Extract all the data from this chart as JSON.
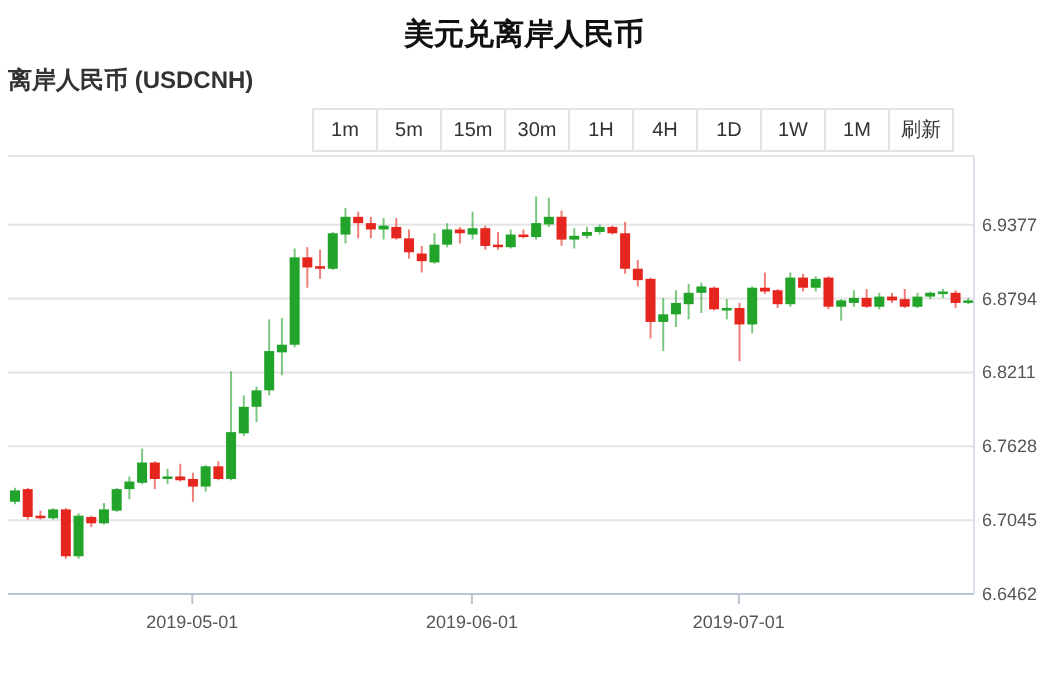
{
  "chart_data": {
    "type": "candlestick",
    "title": "美元兑离岸人民币",
    "subtitle": "离岸人民币 (USDCNH)",
    "annotations": [
      "1m",
      "5m",
      "15m",
      "30m",
      "1H",
      "4H",
      "1D",
      "1W",
      "1M",
      "刷新"
    ],
    "categories": [
      null,
      null,
      null,
      null,
      null,
      null,
      null,
      null,
      null,
      null,
      null,
      null,
      null,
      null,
      "2019-05-01",
      null,
      null,
      null,
      null,
      null,
      null,
      null,
      null,
      null,
      null,
      null,
      null,
      null,
      null,
      null,
      null,
      null,
      null,
      null,
      null,
      null,
      "2019-06-01",
      null,
      null,
      null,
      null,
      null,
      null,
      null,
      null,
      null,
      null,
      null,
      null,
      null,
      null,
      null,
      null,
      null,
      null,
      null,
      null,
      "2019-07-01",
      null,
      null,
      null,
      null,
      null,
      null,
      null,
      null,
      null,
      null,
      null,
      null,
      null,
      null,
      null,
      null,
      null,
      null
    ],
    "ohlc": [
      [
        6.719,
        6.73,
        6.717,
        6.728
      ],
      [
        6.729,
        6.73,
        6.705,
        6.707
      ],
      [
        6.708,
        6.712,
        6.705,
        6.706
      ],
      [
        6.706,
        6.714,
        6.705,
        6.713
      ],
      [
        6.713,
        6.714,
        6.674,
        6.676
      ],
      [
        6.676,
        6.71,
        6.674,
        6.708
      ],
      [
        6.707,
        6.708,
        6.699,
        6.702
      ],
      [
        6.702,
        6.718,
        6.701,
        6.713
      ],
      [
        6.712,
        6.73,
        6.711,
        6.729
      ],
      [
        6.729,
        6.739,
        6.721,
        6.735
      ],
      [
        6.734,
        6.761,
        6.733,
        6.75
      ],
      [
        6.75,
        6.751,
        6.729,
        6.737
      ],
      [
        6.737,
        6.745,
        6.733,
        6.739
      ],
      [
        6.739,
        6.749,
        6.735,
        6.736
      ],
      [
        6.737,
        6.742,
        6.719,
        6.731
      ],
      [
        6.731,
        6.748,
        6.727,
        6.747
      ],
      [
        6.747,
        6.751,
        6.736,
        6.737
      ],
      [
        6.737,
        6.822,
        6.736,
        6.774
      ],
      [
        6.773,
        6.803,
        6.771,
        6.794
      ],
      [
        6.794,
        6.81,
        6.782,
        6.807
      ],
      [
        6.807,
        6.863,
        6.803,
        6.838
      ],
      [
        6.837,
        6.864,
        6.819,
        6.843
      ],
      [
        6.843,
        6.919,
        6.841,
        6.912
      ],
      [
        6.912,
        6.92,
        6.888,
        6.904
      ],
      [
        6.905,
        6.918,
        6.895,
        6.903
      ],
      [
        6.903,
        6.932,
        6.902,
        6.931
      ],
      [
        6.93,
        6.951,
        6.923,
        6.944
      ],
      [
        6.944,
        6.948,
        6.927,
        6.939
      ],
      [
        6.939,
        6.944,
        6.927,
        6.934
      ],
      [
        6.934,
        6.943,
        6.926,
        6.937
      ],
      [
        6.936,
        6.943,
        6.926,
        6.927
      ],
      [
        6.927,
        6.934,
        6.911,
        6.916
      ],
      [
        6.915,
        6.921,
        6.9,
        6.909
      ],
      [
        6.908,
        6.931,
        6.907,
        6.922
      ],
      [
        6.922,
        6.939,
        6.92,
        6.934
      ],
      [
        6.934,
        6.936,
        6.923,
        6.931
      ],
      [
        6.93,
        6.948,
        6.926,
        6.935
      ],
      [
        6.935,
        6.937,
        6.918,
        6.921
      ],
      [
        6.922,
        6.932,
        6.918,
        6.92
      ],
      [
        6.92,
        6.934,
        6.919,
        6.93
      ],
      [
        6.93,
        6.934,
        6.927,
        6.928
      ],
      [
        6.928,
        6.96,
        6.926,
        6.939
      ],
      [
        6.938,
        6.959,
        6.936,
        6.944
      ],
      [
        6.944,
        6.949,
        6.921,
        6.926
      ],
      [
        6.926,
        6.935,
        6.919,
        6.929
      ],
      [
        6.929,
        6.936,
        6.927,
        6.932
      ],
      [
        6.932,
        6.938,
        6.93,
        6.936
      ],
      [
        6.936,
        6.937,
        6.93,
        6.931
      ],
      [
        6.931,
        6.94,
        6.899,
        6.903
      ],
      [
        6.903,
        6.91,
        6.889,
        6.894
      ],
      [
        6.895,
        6.896,
        6.848,
        6.861
      ],
      [
        6.861,
        6.88,
        6.838,
        6.867
      ],
      [
        6.867,
        6.886,
        6.857,
        6.876
      ],
      [
        6.875,
        6.891,
        6.863,
        6.884
      ],
      [
        6.884,
        6.892,
        6.868,
        6.889
      ],
      [
        6.888,
        6.889,
        6.87,
        6.871
      ],
      [
        6.87,
        6.879,
        6.863,
        6.872
      ],
      [
        6.872,
        6.876,
        6.83,
        6.859
      ],
      [
        6.859,
        6.889,
        6.852,
        6.888
      ],
      [
        6.888,
        6.9,
        6.883,
        6.885
      ],
      [
        6.886,
        6.887,
        6.872,
        6.875
      ],
      [
        6.875,
        6.9,
        6.873,
        6.896
      ],
      [
        6.896,
        6.899,
        6.885,
        6.888
      ],
      [
        6.888,
        6.897,
        6.885,
        6.895
      ],
      [
        6.896,
        6.897,
        6.871,
        6.873
      ],
      [
        6.873,
        6.879,
        6.862,
        6.878
      ],
      [
        6.876,
        6.886,
        6.873,
        6.88
      ],
      [
        6.88,
        6.887,
        6.872,
        6.873
      ],
      [
        6.873,
        6.884,
        6.871,
        6.881
      ],
      [
        6.881,
        6.884,
        6.876,
        6.878
      ],
      [
        6.879,
        6.887,
        6.872,
        6.873
      ],
      [
        6.873,
        6.884,
        6.872,
        6.881
      ],
      [
        6.881,
        6.885,
        6.879,
        6.884
      ],
      [
        6.883,
        6.887,
        6.88,
        6.885
      ],
      [
        6.884,
        6.886,
        6.872,
        6.876
      ],
      [
        6.876,
        6.88,
        6.875,
        6.878
      ]
    ],
    "colors": [
      "#22a32a",
      "#e5261e",
      "#e5261e",
      "#22a32a",
      "#e5261e",
      "#22a32a",
      "#e5261e",
      "#22a32a",
      "#22a32a",
      "#22a32a",
      "#22a32a",
      "#e5261e",
      "#22a32a",
      "#e5261e",
      "#e5261e",
      "#22a32a",
      "#e5261e",
      "#22a32a",
      "#22a32a",
      "#22a32a",
      "#22a32a",
      "#22a32a",
      "#22a32a",
      "#e5261e",
      "#e5261e",
      "#22a32a",
      "#22a32a",
      "#e5261e",
      "#e5261e",
      "#22a32a",
      "#e5261e",
      "#e5261e",
      "#e5261e",
      "#22a32a",
      "#22a32a",
      "#e5261e",
      "#22a32a",
      "#e5261e",
      "#e5261e",
      "#22a32a",
      "#e5261e",
      "#22a32a",
      "#22a32a",
      "#e5261e",
      "#22a32a",
      "#22a32a",
      "#22a32a",
      "#e5261e",
      "#e5261e",
      "#e5261e",
      "#e5261e",
      "#22a32a",
      "#22a32a",
      "#22a32a",
      "#22a32a",
      "#e5261e",
      "#22a32a",
      "#e5261e",
      "#22a32a",
      "#e5261e",
      "#e5261e",
      "#22a32a",
      "#e5261e",
      "#22a32a",
      "#e5261e",
      "#22a32a",
      "#22a32a",
      "#e5261e",
      "#22a32a",
      "#e5261e",
      "#e5261e",
      "#22a32a",
      "#22a32a",
      "#22a32a",
      "#e5261e",
      "#22a32a"
    ],
    "ylim": [
      6.6462,
      6.992
    ],
    "yticks": [
      6.6462,
      6.7045,
      6.7628,
      6.8211,
      6.8794,
      6.9377
    ],
    "grid": "y"
  }
}
